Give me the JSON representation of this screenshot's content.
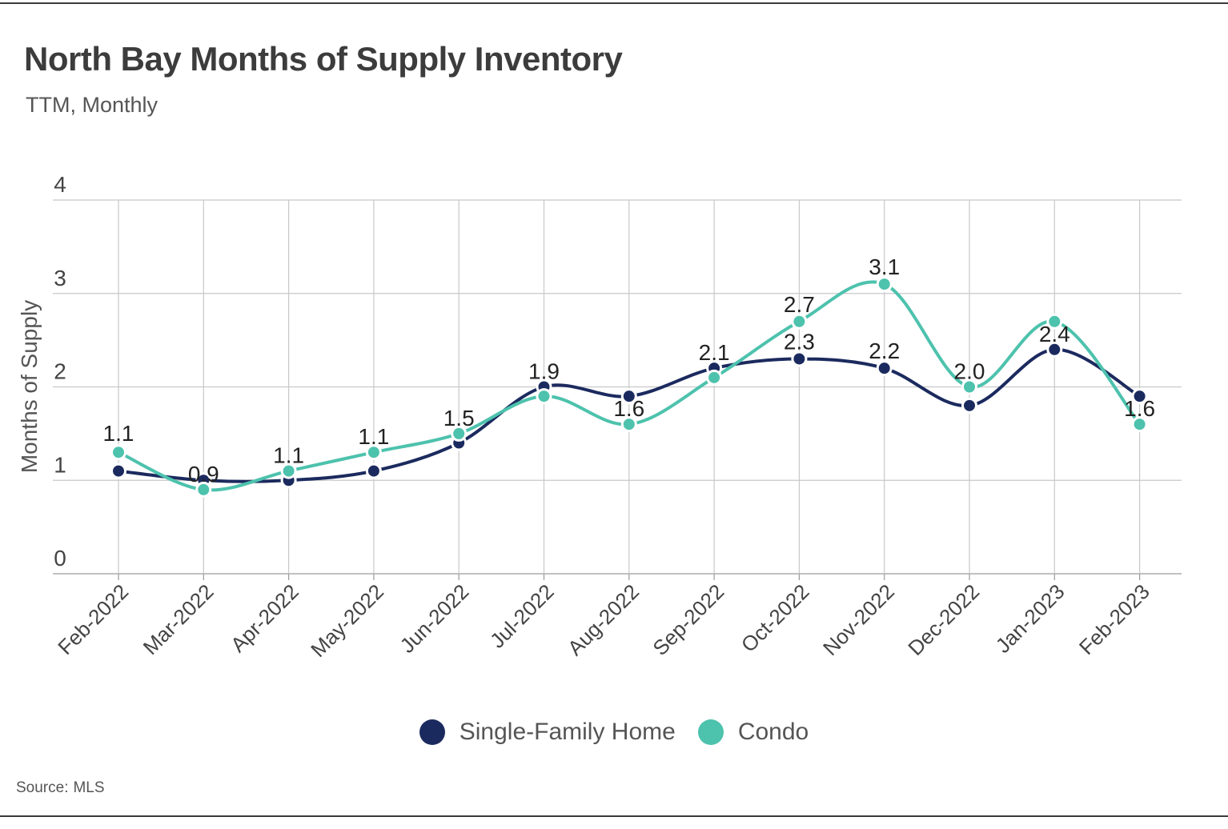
{
  "title": "North Bay Months of Supply Inventory",
  "subtitle": "TTM, Monthly",
  "source": {
    "label": "Source:",
    "value": "MLS"
  },
  "colors": {
    "single_family": "#1b2a5e",
    "condo": "#4dc2ad",
    "grid": "#c8c8c8",
    "text": "#333333"
  },
  "chart_data": {
    "type": "line",
    "title": "North Bay Months of Supply Inventory",
    "subtitle": "TTM, Monthly",
    "xlabel": "",
    "ylabel": "Months of Supply",
    "ylim": [
      0,
      4
    ],
    "yticks": [
      "0",
      "1",
      "2",
      "3",
      "4"
    ],
    "categories": [
      "Feb-2022",
      "Mar-2022",
      "Apr-2022",
      "May-2022",
      "Jun-2022",
      "Jul-2022",
      "Aug-2022",
      "Sep-2022",
      "Oct-2022",
      "Nov-2022",
      "Dec-2022",
      "Jan-2023",
      "Feb-2023"
    ],
    "series": [
      {
        "name": "Single-Family Home",
        "values": [
          1.1,
          1.0,
          1.0,
          1.1,
          1.4,
          2.0,
          1.9,
          2.2,
          2.3,
          2.2,
          1.8,
          2.4,
          1.9
        ]
      },
      {
        "name": "Condo",
        "values": [
          1.3,
          0.9,
          1.1,
          1.3,
          1.5,
          1.9,
          1.6,
          2.1,
          2.7,
          3.1,
          2.0,
          2.7,
          1.6
        ]
      }
    ],
    "data_labels": [
      "1.1",
      "0.9",
      "1.1",
      "1.1",
      "1.5",
      "1.9",
      "1.6",
      "2.1",
      "2.3",
      "2.2",
      "2.0",
      "2.4",
      "1.6"
    ],
    "extra_labels": [
      "2.7",
      "3.1"
    ],
    "grid": true,
    "legend": "bottom-center"
  }
}
